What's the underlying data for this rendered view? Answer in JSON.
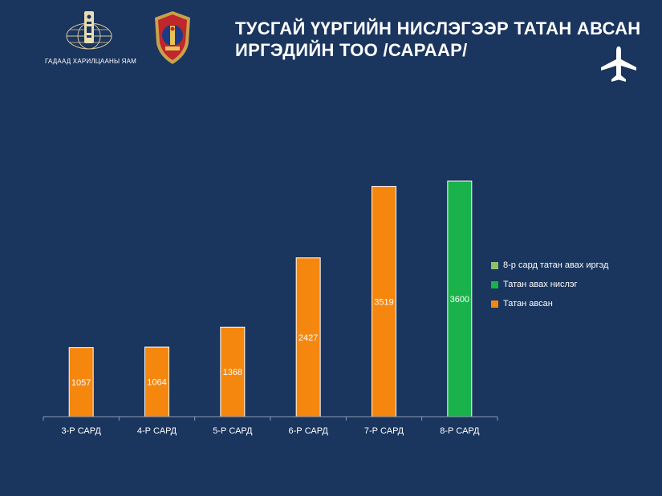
{
  "header": {
    "org_name": "ГАДААД ХАРИЛЦААНЫ ЯАМ",
    "title_line1": "ТУСГАЙ ҮҮРГИЙН НИСЛЭГЭЭР ТАТАН АВСАН",
    "title_line2": "ИРГЭДИЙН ТОО /САРААР/",
    "icons": [
      "mfa-globe-logo-icon",
      "shield-emblem-icon",
      "airplane-icon"
    ]
  },
  "colors": {
    "background": "#1a355e",
    "orange": "#f5870f",
    "green": "#19b24b",
    "olive": "#8fbf6a",
    "axis": "#8a9ab3",
    "white": "#ffffff"
  },
  "chart_data": {
    "type": "bar",
    "title": "ТУСГАЙ ҮҮРГИЙН НИСЛЭГЭЭР ТАТАН АВСАН ИРГЭДИЙН ТОО /САРААР/",
    "categories": [
      "3-Р САРД",
      "4-Р САРД",
      "5-Р САРД",
      "6-Р САРД",
      "7-Р САРД",
      "8-Р САРД"
    ],
    "series": [
      {
        "name": "8-р сард татан авах иргэд",
        "color": "#8fbf6a",
        "values": [
          null,
          null,
          null,
          null,
          null,
          null
        ]
      },
      {
        "name": "Татан авах нислэг",
        "color": "#19b24b",
        "values": [
          null,
          null,
          null,
          null,
          null,
          3600
        ]
      },
      {
        "name": "Татан авсан",
        "color": "#f5870f",
        "values": [
          1057,
          1064,
          1368,
          2427,
          3519,
          null
        ]
      }
    ],
    "ylim": [
      0,
      3600
    ],
    "grid": false,
    "legend_position": "right"
  }
}
